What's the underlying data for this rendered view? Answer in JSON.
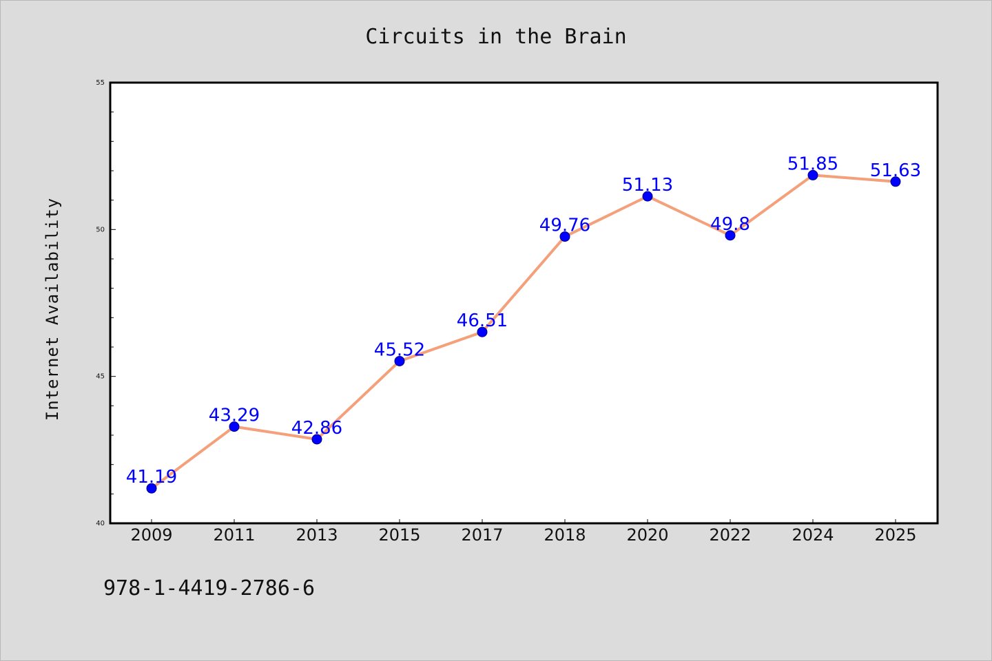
{
  "chart_data": {
    "type": "line",
    "title": "Circuits in the Brain",
    "xlabel": "",
    "ylabel": "Internet Availability",
    "categories": [
      "2009",
      "2011",
      "2013",
      "2015",
      "2017",
      "2018",
      "2020",
      "2022",
      "2024",
      "2025"
    ],
    "series": [
      {
        "values": [
          41.19,
          43.29,
          42.86,
          45.52,
          46.51,
          49.76,
          51.13,
          49.8,
          51.85,
          51.63
        ],
        "data_labels": [
          "41.19",
          "43.29",
          "42.86",
          "45.52",
          "46.51",
          "49.76",
          "51.13",
          "49.8",
          "51.85",
          "51.63"
        ]
      }
    ],
    "ylim": [
      40,
      55
    ],
    "yticks": [
      "40",
      "45",
      "50",
      "55"
    ],
    "grid": false,
    "legend": "none",
    "colors": {
      "line": "#f4a07a",
      "marker": "#0000ff",
      "label": "#0000ff",
      "background": "#dcdcdc",
      "plot_background": "#ffffff"
    }
  },
  "footer_text": "978-1-4419-2786-6"
}
